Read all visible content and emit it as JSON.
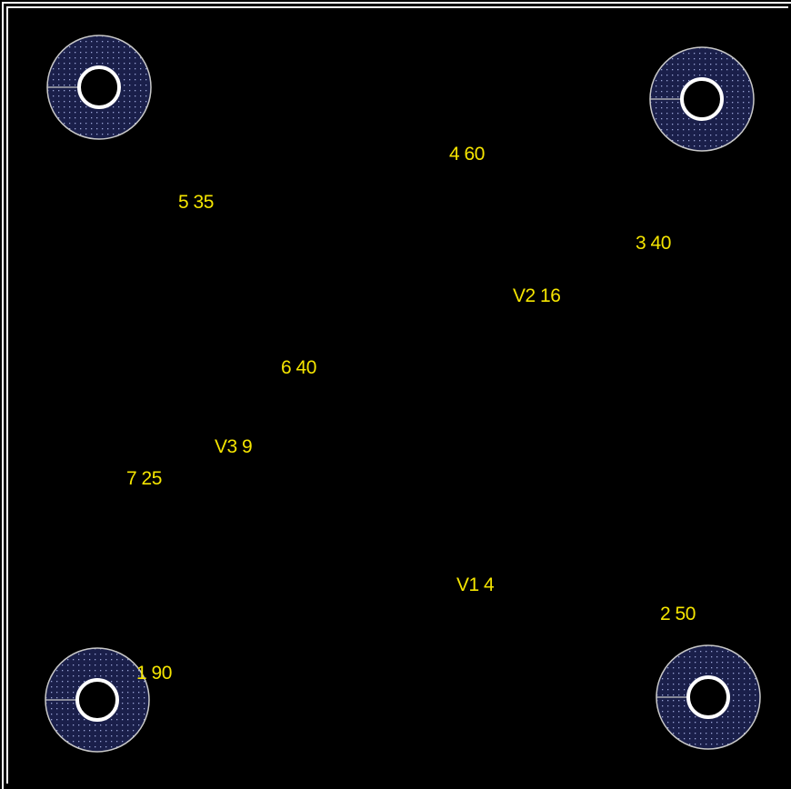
{
  "colors": {
    "background": "#000000",
    "frame": "#ffffff",
    "label": "#f5e500",
    "pad_fill": "#1a1f4a",
    "pad_dots": "#9aa3d6",
    "pad_outline": "#c8c8c8",
    "hole_ring": "#ffffff"
  },
  "pads": [
    {
      "name": "mounting-pad-top-left",
      "icon": "mounting-hole-icon"
    },
    {
      "name": "mounting-pad-top-right",
      "icon": "mounting-hole-icon"
    },
    {
      "name": "mounting-pad-bottom-left",
      "icon": "mounting-hole-icon"
    },
    {
      "name": "mounting-pad-bottom-right",
      "icon": "mounting-hole-icon"
    }
  ],
  "labels": {
    "l1": "4 60",
    "l2": "5 35",
    "l3": "3 40",
    "l4": "V2 16",
    "l5": "6 40",
    "l6": "V3 9",
    "l7": "7 25",
    "l8": "V1 4",
    "l9": "2 50",
    "l10": "1 90"
  }
}
